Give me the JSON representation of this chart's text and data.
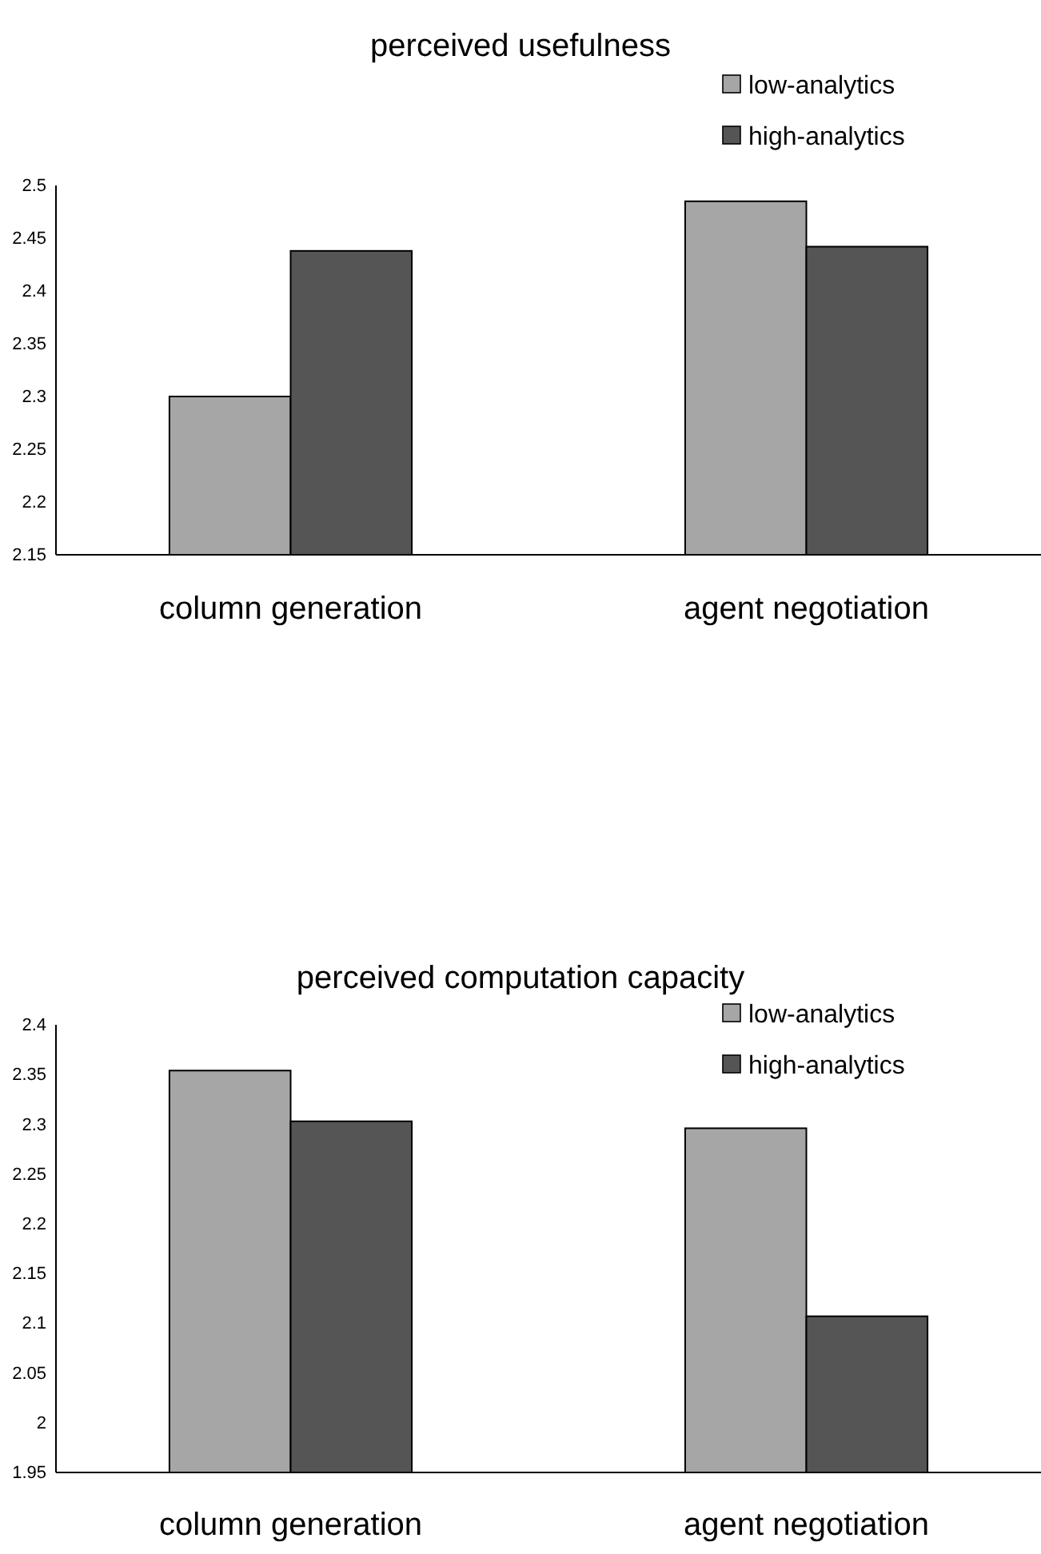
{
  "chart_data": [
    {
      "type": "bar",
      "title": "perceived usefulness",
      "categories": [
        "column generation",
        "agent negotiation"
      ],
      "series": [
        {
          "name": "low-analytics",
          "color": "#a6a6a6",
          "values": [
            2.3,
            2.485
          ]
        },
        {
          "name": "high-analytics",
          "color": "#555555",
          "values": [
            2.438,
            2.442
          ]
        }
      ],
      "ylim": [
        2.15,
        2.5
      ],
      "yticks": [
        2.15,
        2.2,
        2.25,
        2.3,
        2.35,
        2.4,
        2.45,
        2.5
      ],
      "grid": false,
      "legend": "top right"
    },
    {
      "type": "bar",
      "title": "perceived computation capacity",
      "categories": [
        "column generation",
        "agent negotiation"
      ],
      "series": [
        {
          "name": "low-analytics",
          "color": "#a6a6a6",
          "values": [
            2.354,
            2.296
          ]
        },
        {
          "name": "high-analytics",
          "color": "#555555",
          "values": [
            2.303,
            2.107
          ]
        }
      ],
      "ylim": [
        1.95,
        2.4
      ],
      "yticks": [
        1.95,
        2,
        2.05,
        2.1,
        2.15,
        2.2,
        2.25,
        2.3,
        2.35,
        2.4
      ],
      "grid": false,
      "legend": "top right"
    }
  ]
}
